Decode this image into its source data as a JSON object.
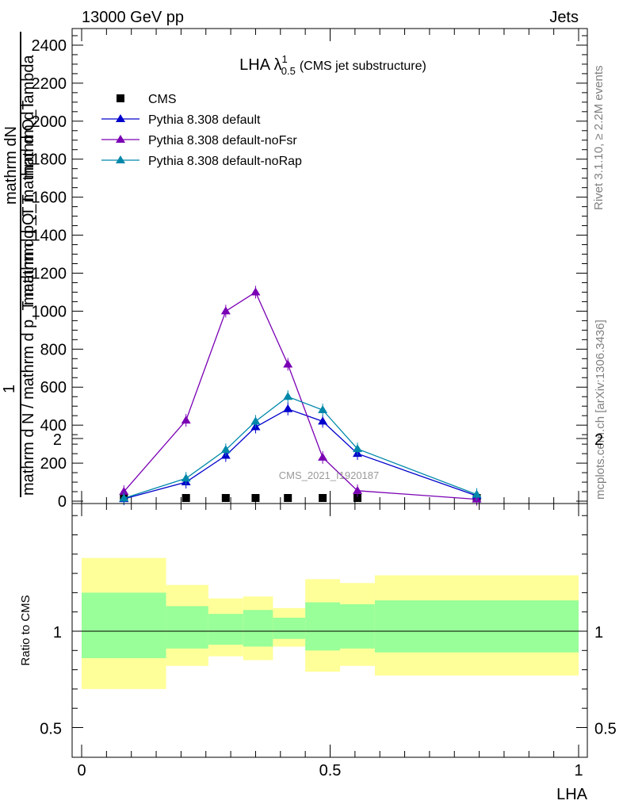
{
  "header": {
    "left": "13000 GeV pp",
    "right": "Jets"
  },
  "side": {
    "rivet": "Rivet 3.1.10, ≥ 2.2M events",
    "mcplots": "mcplots.cern.ch [arXiv:1306.3436]"
  },
  "main_ylabel": {
    "top1": "mathrm dN",
    "top2": "mathrm d lambda",
    "top3": "mathrm d p_T mathrm d Q_T",
    "one": "1",
    "bottom": "mathrm d N / mathrm d p_T mathrm d Q_T"
  },
  "ratio_ylabel": "Ratio to CMS",
  "chart_data": [
    {
      "type": "line",
      "title": "LHA λ¹₀.₅ (CMS jet substructure)",
      "title_main": "LHA λ",
      "title_sup": "1",
      "title_sub": "0.5",
      "title_suffix": "(CMS jet substructure)",
      "watermark": "CMS_2021_I1920187",
      "xlabel": "LHA",
      "xlim": [
        0,
        1
      ],
      "ylim": [
        0,
        2500
      ],
      "yticks": [
        "0",
        "200",
        "400",
        "600",
        "800",
        "1000",
        "1200",
        "1400",
        "1600",
        "1800",
        "2000",
        "2200",
        "2400"
      ],
      "xticks": [
        "0",
        "0.5",
        "1"
      ],
      "legend_position": "top-left",
      "series": [
        {
          "name": "CMS",
          "color": "#000000",
          "marker": "square",
          "x": [
            0.085,
            0.21,
            0.29,
            0.35,
            0.415,
            0.485,
            0.555,
            0.795
          ],
          "y": [
            0,
            2,
            3,
            3,
            4,
            3,
            2,
            0
          ]
        },
        {
          "name": "Pythia 8.308 default",
          "color": "#0000cc",
          "marker": "triangle",
          "x": [
            0.085,
            0.21,
            0.29,
            0.35,
            0.415,
            0.485,
            0.555,
            0.795
          ],
          "y": [
            12,
            100,
            240,
            390,
            485,
            420,
            250,
            28
          ]
        },
        {
          "name": "Pythia 8.308 default-noFsr",
          "color": "#7a00b4",
          "marker": "triangle",
          "x": [
            0.085,
            0.21,
            0.29,
            0.35,
            0.415,
            0.485,
            0.555,
            0.795
          ],
          "y": [
            50,
            425,
            1000,
            1100,
            720,
            230,
            55,
            10
          ]
        },
        {
          "name": "Pythia 8.308 default-noRap",
          "color": "#0088aa",
          "marker": "triangle",
          "x": [
            0.085,
            0.21,
            0.29,
            0.35,
            0.415,
            0.485,
            0.555,
            0.795
          ],
          "y": [
            15,
            120,
            270,
            420,
            550,
            480,
            275,
            35
          ]
        }
      ]
    },
    {
      "type": "area",
      "ylabel": "Ratio to CMS",
      "xlabel": "LHA",
      "xlim": [
        0,
        1
      ],
      "ylim": [
        0.25,
        2.25
      ],
      "yticks": [
        "0.5",
        "1",
        "2"
      ],
      "xticks": [
        "0",
        "0.5",
        "1"
      ],
      "reference_line": 1,
      "bands": [
        {
          "x0": 0.0,
          "x1": 0.17,
          "green": [
            0.86,
            1.2
          ],
          "yellow": [
            0.7,
            1.38
          ]
        },
        {
          "x0": 0.17,
          "x1": 0.255,
          "green": [
            0.91,
            1.13
          ],
          "yellow": [
            0.82,
            1.24
          ]
        },
        {
          "x0": 0.255,
          "x1": 0.325,
          "green": [
            0.93,
            1.09
          ],
          "yellow": [
            0.87,
            1.17
          ]
        },
        {
          "x0": 0.325,
          "x1": 0.385,
          "green": [
            0.92,
            1.11
          ],
          "yellow": [
            0.85,
            1.18
          ]
        },
        {
          "x0": 0.385,
          "x1": 0.45,
          "green": [
            0.96,
            1.07
          ],
          "yellow": [
            0.92,
            1.12
          ]
        },
        {
          "x0": 0.45,
          "x1": 0.52,
          "green": [
            0.9,
            1.15
          ],
          "yellow": [
            0.79,
            1.27
          ]
        },
        {
          "x0": 0.52,
          "x1": 0.59,
          "green": [
            0.91,
            1.14
          ],
          "yellow": [
            0.82,
            1.25
          ]
        },
        {
          "x0": 0.59,
          "x1": 1.0,
          "green": [
            0.89,
            1.16
          ],
          "yellow": [
            0.77,
            1.29
          ]
        }
      ]
    }
  ]
}
